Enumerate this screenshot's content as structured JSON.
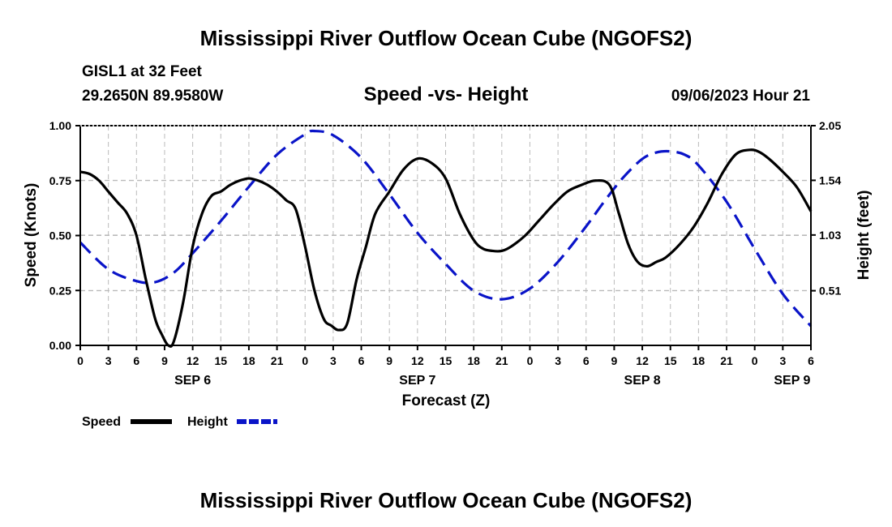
{
  "page": {
    "title": "Mississippi River Outflow Ocean Cube (NGOFS2)",
    "title_repeat": "Mississippi River Outflow Ocean Cube (NGOFS2)",
    "station": "GISL1 at 32 Feet",
    "coords": "29.2650N  89.9580W",
    "datetime": "09/06/2023 Hour 21"
  },
  "colors": {
    "speed": "#000000",
    "height": "#0a14c8",
    "grid": "#bbbbbb"
  },
  "chart_data": {
    "type": "line",
    "title": "Speed -vs- Height",
    "xlabel": "Forecast (Z)",
    "ylabel_left": "Speed (Knots)",
    "ylabel_right": "Height (feet)",
    "xlim": [
      0,
      78
    ],
    "ylim_left": [
      0,
      1.0
    ],
    "ylim_right": [
      0,
      2.05
    ],
    "left_ticks": [
      "0.00",
      "0.25",
      "0.50",
      "0.75",
      "1.00"
    ],
    "left_tick_values": [
      0,
      0.25,
      0.5,
      0.75,
      1.0
    ],
    "right_ticks": [
      "0.51",
      "1.03",
      "1.54",
      "2.05"
    ],
    "right_tick_values": [
      0.51,
      1.03,
      1.54,
      2.05
    ],
    "x_tick_values": [
      0,
      3,
      6,
      9,
      12,
      15,
      18,
      21,
      24,
      27,
      30,
      33,
      36,
      39,
      42,
      45,
      48,
      51,
      54,
      57,
      60,
      63,
      66,
      69,
      72,
      75,
      78
    ],
    "x_tick_labels": [
      "0",
      "3",
      "6",
      "9",
      "12",
      "15",
      "18",
      "21",
      "0",
      "3",
      "6",
      "9",
      "12",
      "15",
      "18",
      "21",
      "0",
      "3",
      "6",
      "9",
      "12",
      "15",
      "18",
      "21",
      "0",
      "3",
      "6"
    ],
    "day_labels": [
      {
        "label": "SEP 6",
        "x": 12
      },
      {
        "label": "SEP 7",
        "x": 36
      },
      {
        "label": "SEP 8",
        "x": 60
      },
      {
        "label": "SEP 9",
        "x": 76
      }
    ],
    "grid": true,
    "legend_position": "bottom-left",
    "series": [
      {
        "name": "Speed",
        "axis": "left",
        "style": "solid",
        "x": [
          0,
          1,
          2,
          3,
          4,
          5,
          6,
          7,
          8,
          8.7,
          9.4,
          10,
          11,
          12,
          13,
          14,
          15,
          16,
          17,
          18,
          19,
          20,
          21,
          22,
          23,
          24,
          25,
          26,
          26.8,
          27.6,
          28.5,
          29.5,
          30.5,
          31.5,
          33,
          34.5,
          36,
          37.5,
          39,
          40.5,
          42,
          43,
          44,
          45,
          46,
          47.5,
          49,
          50.5,
          52,
          53.5,
          55,
          56.5,
          57.5,
          58.5,
          59.5,
          60.5,
          61.5,
          62.5,
          64,
          65.5,
          67,
          68.5,
          70,
          71.5,
          72.5,
          73.5,
          75,
          76.5,
          78
        ],
        "values": [
          0.79,
          0.78,
          0.75,
          0.7,
          0.65,
          0.6,
          0.5,
          0.3,
          0.12,
          0.05,
          0.0,
          0.02,
          0.2,
          0.45,
          0.6,
          0.68,
          0.7,
          0.73,
          0.75,
          0.76,
          0.75,
          0.73,
          0.7,
          0.66,
          0.62,
          0.45,
          0.25,
          0.12,
          0.09,
          0.07,
          0.1,
          0.3,
          0.45,
          0.6,
          0.7,
          0.8,
          0.85,
          0.83,
          0.76,
          0.6,
          0.48,
          0.44,
          0.43,
          0.43,
          0.45,
          0.5,
          0.57,
          0.64,
          0.7,
          0.73,
          0.75,
          0.73,
          0.6,
          0.46,
          0.38,
          0.36,
          0.38,
          0.4,
          0.46,
          0.54,
          0.65,
          0.78,
          0.87,
          0.89,
          0.88,
          0.85,
          0.79,
          0.72,
          0.61
        ]
      },
      {
        "name": "Height",
        "axis": "right",
        "style": "dashed",
        "x": [
          0,
          3,
          6,
          8,
          10,
          12,
          15,
          18,
          21,
          24,
          25,
          27,
          30,
          33,
          36,
          39,
          42,
          45,
          48,
          51,
          54,
          56,
          58,
          60,
          61.5,
          63,
          64.5,
          66,
          69,
          72,
          75,
          78
        ],
        "values": [
          0.96,
          0.71,
          0.6,
          0.59,
          0.68,
          0.86,
          1.16,
          1.48,
          1.78,
          1.97,
          2.0,
          1.96,
          1.75,
          1.41,
          1.05,
          0.76,
          0.51,
          0.43,
          0.53,
          0.78,
          1.11,
          1.35,
          1.57,
          1.74,
          1.8,
          1.81,
          1.78,
          1.68,
          1.34,
          0.9,
          0.48,
          0.18
        ]
      }
    ]
  }
}
